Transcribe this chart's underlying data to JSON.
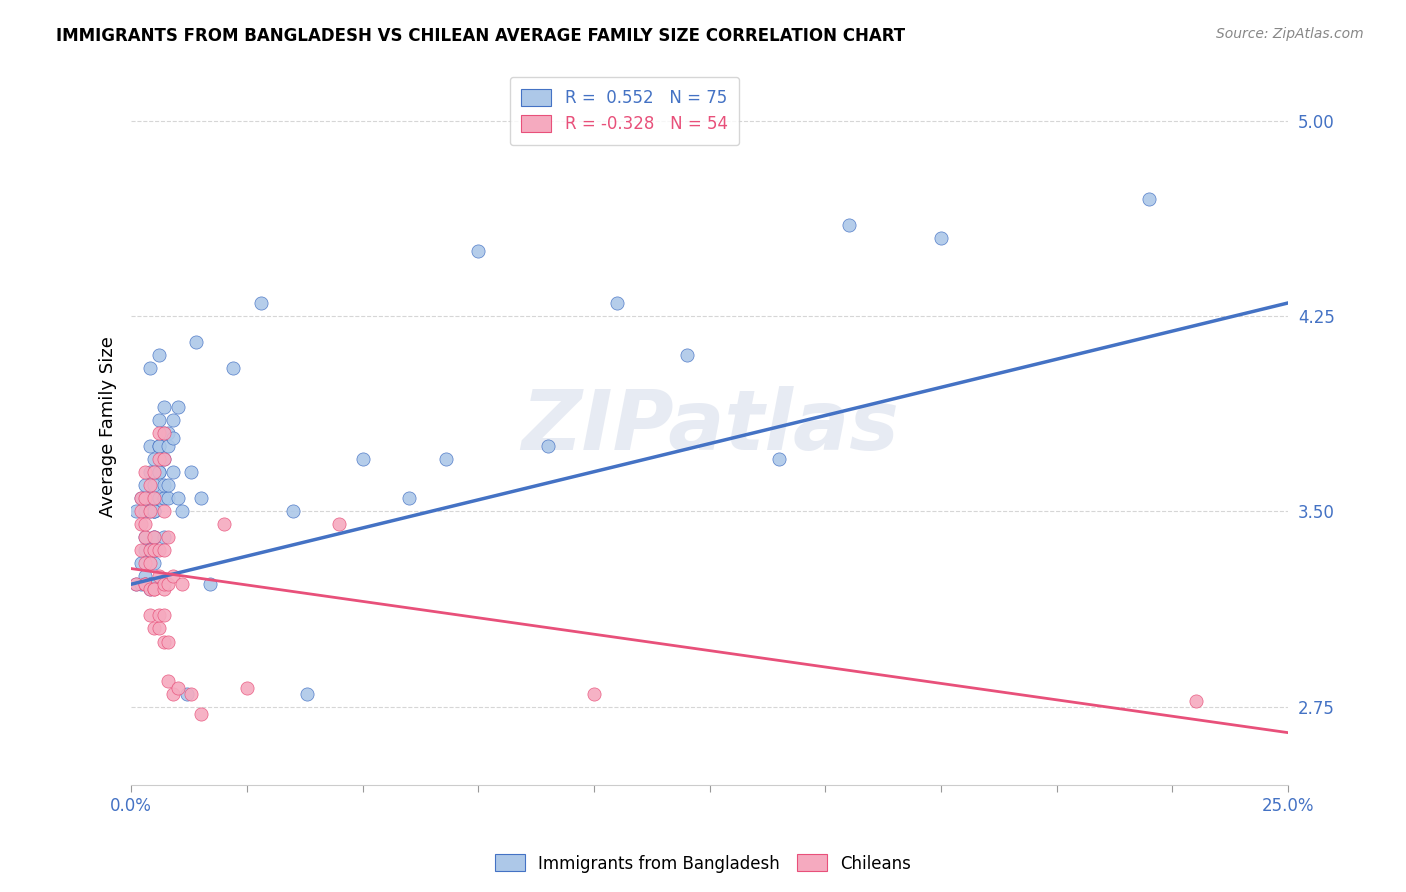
{
  "title": "IMMIGRANTS FROM BANGLADESH VS CHILEAN AVERAGE FAMILY SIZE CORRELATION CHART",
  "source": "Source: ZipAtlas.com",
  "ylabel": "Average Family Size",
  "yticks": [
    2.75,
    3.5,
    4.25,
    5.0
  ],
  "xlim": [
    0.0,
    0.25
  ],
  "ylim": [
    2.45,
    5.2
  ],
  "legend_label1": "R =  0.552   N = 75",
  "legend_label2": "R = -0.328   N = 54",
  "color_bangladesh": "#adc8e8",
  "color_chilean": "#f5aabf",
  "line_color_bangladesh": "#4472c4",
  "line_color_chilean": "#e8507a",
  "watermark": "ZIPatlas",
  "bangladesh_points": [
    [
      0.001,
      3.22
    ],
    [
      0.001,
      3.5
    ],
    [
      0.002,
      3.55
    ],
    [
      0.002,
      3.3
    ],
    [
      0.002,
      3.22
    ],
    [
      0.003,
      3.4
    ],
    [
      0.003,
      3.35
    ],
    [
      0.003,
      3.6
    ],
    [
      0.003,
      3.5
    ],
    [
      0.003,
      3.25
    ],
    [
      0.003,
      3.22
    ],
    [
      0.004,
      4.05
    ],
    [
      0.004,
      3.75
    ],
    [
      0.004,
      3.5
    ],
    [
      0.004,
      3.35
    ],
    [
      0.004,
      3.22
    ],
    [
      0.004,
      3.65
    ],
    [
      0.004,
      3.55
    ],
    [
      0.004,
      3.35
    ],
    [
      0.004,
      3.22
    ],
    [
      0.004,
      3.2
    ],
    [
      0.005,
      3.5
    ],
    [
      0.005,
      3.4
    ],
    [
      0.005,
      3.22
    ],
    [
      0.005,
      3.7
    ],
    [
      0.005,
      3.5
    ],
    [
      0.005,
      3.4
    ],
    [
      0.005,
      3.3
    ],
    [
      0.005,
      3.22
    ],
    [
      0.005,
      3.6
    ],
    [
      0.005,
      3.5
    ],
    [
      0.005,
      3.35
    ],
    [
      0.006,
      3.75
    ],
    [
      0.006,
      3.65
    ],
    [
      0.006,
      3.55
    ],
    [
      0.006,
      4.1
    ],
    [
      0.006,
      3.85
    ],
    [
      0.006,
      3.65
    ],
    [
      0.006,
      3.75
    ],
    [
      0.007,
      3.55
    ],
    [
      0.007,
      3.4
    ],
    [
      0.007,
      3.8
    ],
    [
      0.007,
      3.6
    ],
    [
      0.007,
      3.9
    ],
    [
      0.007,
      3.7
    ],
    [
      0.008,
      3.75
    ],
    [
      0.008,
      3.55
    ],
    [
      0.008,
      3.8
    ],
    [
      0.008,
      3.6
    ],
    [
      0.009,
      3.85
    ],
    [
      0.009,
      3.65
    ],
    [
      0.009,
      3.78
    ],
    [
      0.01,
      3.55
    ],
    [
      0.01,
      3.9
    ],
    [
      0.011,
      3.5
    ],
    [
      0.012,
      2.8
    ],
    [
      0.013,
      3.65
    ],
    [
      0.014,
      4.15
    ],
    [
      0.015,
      3.55
    ],
    [
      0.017,
      3.22
    ],
    [
      0.022,
      4.05
    ],
    [
      0.028,
      4.3
    ],
    [
      0.035,
      3.5
    ],
    [
      0.038,
      2.8
    ],
    [
      0.05,
      3.7
    ],
    [
      0.06,
      3.55
    ],
    [
      0.068,
      3.7
    ],
    [
      0.075,
      4.5
    ],
    [
      0.09,
      3.75
    ],
    [
      0.105,
      4.3
    ],
    [
      0.12,
      4.1
    ],
    [
      0.14,
      3.7
    ],
    [
      0.155,
      4.6
    ],
    [
      0.175,
      4.55
    ],
    [
      0.22,
      4.7
    ]
  ],
  "chilean_points": [
    [
      0.001,
      3.22
    ],
    [
      0.002,
      3.5
    ],
    [
      0.002,
      3.35
    ],
    [
      0.002,
      3.55
    ],
    [
      0.002,
      3.45
    ],
    [
      0.003,
      3.3
    ],
    [
      0.003,
      3.55
    ],
    [
      0.003,
      3.4
    ],
    [
      0.003,
      3.22
    ],
    [
      0.003,
      3.65
    ],
    [
      0.003,
      3.45
    ],
    [
      0.003,
      3.22
    ],
    [
      0.004,
      3.6
    ],
    [
      0.004,
      3.35
    ],
    [
      0.004,
      3.2
    ],
    [
      0.004,
      3.5
    ],
    [
      0.004,
      3.3
    ],
    [
      0.004,
      3.1
    ],
    [
      0.005,
      3.4
    ],
    [
      0.005,
      3.2
    ],
    [
      0.005,
      3.05
    ],
    [
      0.005,
      3.65
    ],
    [
      0.005,
      3.55
    ],
    [
      0.005,
      3.35
    ],
    [
      0.005,
      3.2
    ],
    [
      0.006,
      3.8
    ],
    [
      0.006,
      3.7
    ],
    [
      0.006,
      3.25
    ],
    [
      0.006,
      3.05
    ],
    [
      0.006,
      3.35
    ],
    [
      0.006,
      3.1
    ],
    [
      0.007,
      3.8
    ],
    [
      0.007,
      3.7
    ],
    [
      0.007,
      3.2
    ],
    [
      0.007,
      3.0
    ],
    [
      0.007,
      3.5
    ],
    [
      0.007,
      3.22
    ],
    [
      0.007,
      3.35
    ],
    [
      0.007,
      3.1
    ],
    [
      0.008,
      3.22
    ],
    [
      0.008,
      3.0
    ],
    [
      0.008,
      3.4
    ],
    [
      0.008,
      2.85
    ],
    [
      0.009,
      3.25
    ],
    [
      0.009,
      2.8
    ],
    [
      0.01,
      2.82
    ],
    [
      0.011,
      3.22
    ],
    [
      0.013,
      2.8
    ],
    [
      0.015,
      2.72
    ],
    [
      0.02,
      3.45
    ],
    [
      0.025,
      2.82
    ],
    [
      0.045,
      3.45
    ],
    [
      0.1,
      2.8
    ],
    [
      0.23,
      2.77
    ]
  ],
  "bangladesh_line": [
    [
      0.0,
      3.22
    ],
    [
      0.25,
      4.3
    ]
  ],
  "chilean_line": [
    [
      0.0,
      3.28
    ],
    [
      0.25,
      2.65
    ]
  ]
}
